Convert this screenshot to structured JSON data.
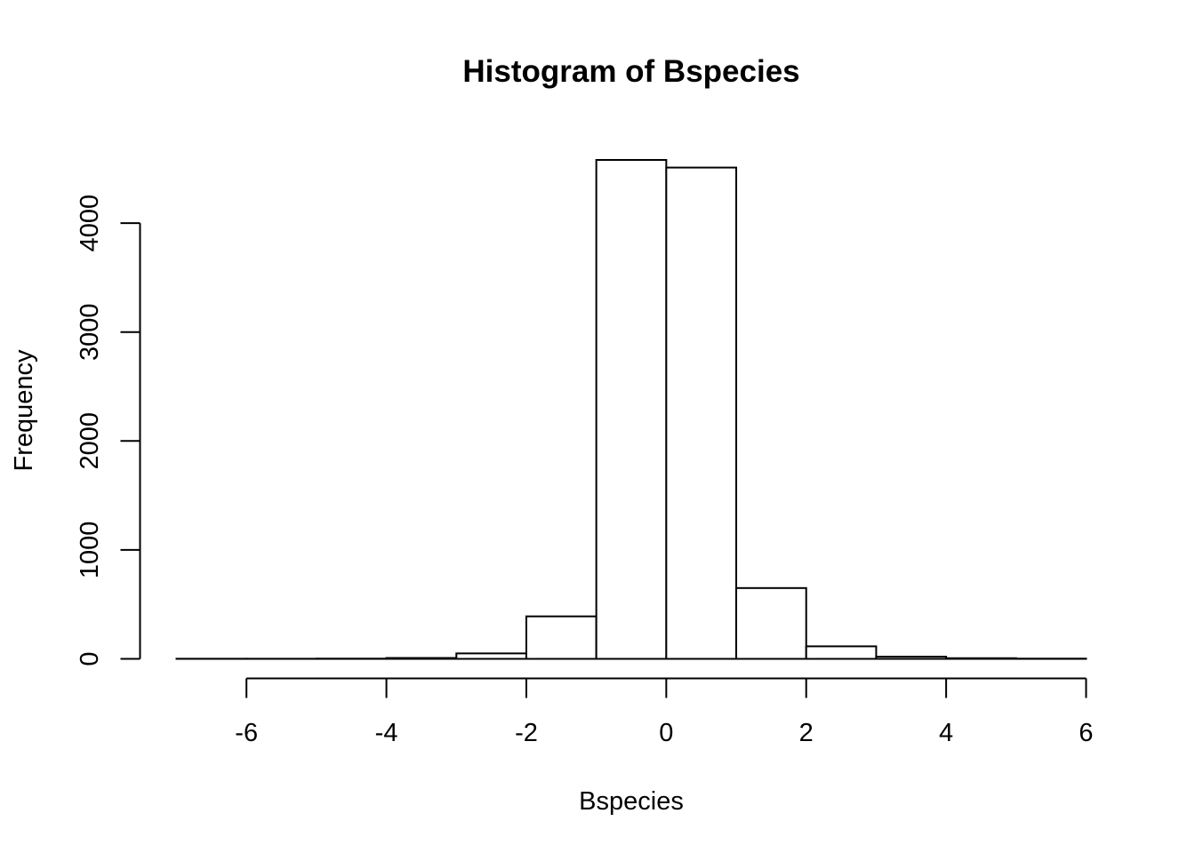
{
  "chart_data": {
    "type": "bar",
    "title": "Histogram of Bspecies",
    "xlabel": "Bspecies",
    "ylabel": "Frequency",
    "bins": [
      {
        "from": -7,
        "to": -6,
        "count": 1
      },
      {
        "from": -6,
        "to": -5,
        "count": 1
      },
      {
        "from": -5,
        "to": -4,
        "count": 2
      },
      {
        "from": -4,
        "to": -3,
        "count": 8
      },
      {
        "from": -3,
        "to": -2,
        "count": 50
      },
      {
        "from": -2,
        "to": -1,
        "count": 390
      },
      {
        "from": -1,
        "to": 0,
        "count": 4580
      },
      {
        "from": 0,
        "to": 1,
        "count": 4510
      },
      {
        "from": 1,
        "to": 2,
        "count": 650
      },
      {
        "from": 2,
        "to": 3,
        "count": 115
      },
      {
        "from": 3,
        "to": 4,
        "count": 20
      },
      {
        "from": 4,
        "to": 5,
        "count": 6
      },
      {
        "from": 5,
        "to": 6,
        "count": 2
      }
    ],
    "xlim": [
      -7,
      6
    ],
    "ylim": [
      0,
      4580
    ],
    "x_ticks": [
      -6,
      -4,
      -2,
      0,
      2,
      4,
      6
    ],
    "x_tick_labels": [
      "-6",
      "-4",
      "-2",
      "0",
      "2",
      "4",
      "6"
    ],
    "y_ticks": [
      0,
      1000,
      2000,
      3000,
      4000
    ],
    "y_tick_labels": [
      "0",
      "1000",
      "2000",
      "3000",
      "4000"
    ],
    "bar_fill": "#ffffff",
    "bar_stroke": "#000000",
    "grid": false
  }
}
